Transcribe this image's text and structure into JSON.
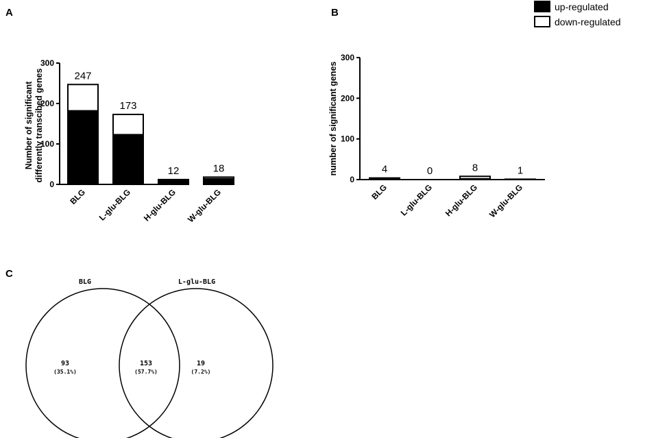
{
  "panels": {
    "a": "A",
    "b": "B",
    "c": "C"
  },
  "legend": {
    "up": "up-regulated",
    "down": "down-regulated"
  },
  "chart_data": [
    {
      "type": "bar",
      "stacked": true,
      "panel": "A",
      "categories": [
        "BLG",
        "L-glu-BLG",
        "H-glu-BLG",
        "W-glu-BLG"
      ],
      "series": [
        {
          "name": "up-regulated",
          "values": [
            182,
            123,
            12,
            14
          ],
          "color": "#000000"
        },
        {
          "name": "down-regulated",
          "values": [
            65,
            50,
            0,
            4
          ],
          "color": "#ffffff"
        }
      ],
      "totals": [
        "247",
        "173",
        "12",
        "18"
      ],
      "ylabel": [
        "Number of significant",
        "differently transcibed genes"
      ],
      "ylim": [
        0,
        300
      ],
      "yticks": [
        "0",
        "100",
        "200",
        "300"
      ]
    },
    {
      "type": "bar",
      "stacked": true,
      "panel": "B",
      "categories": [
        "BLG",
        "L-glu-BLG",
        "H-glu-BLG",
        "W-glu-BLG"
      ],
      "series": [
        {
          "name": "up-regulated",
          "values": [
            3,
            0,
            2,
            1
          ],
          "color": "#000000"
        },
        {
          "name": "down-regulated",
          "values": [
            1,
            0,
            6,
            0
          ],
          "color": "#ffffff"
        }
      ],
      "totals": [
        "4",
        "0",
        "8",
        "1"
      ],
      "ylabel": "number of significant genes",
      "ylim": [
        0,
        300
      ],
      "yticks": [
        "0",
        "100",
        "200",
        "300"
      ]
    }
  ],
  "venn": {
    "sets": [
      "BLG",
      "L-glu-BLG"
    ],
    "regions": [
      {
        "count": "93",
        "percent": "(35.1%)"
      },
      {
        "count": "153",
        "percent": "(57.7%)"
      },
      {
        "count": "19",
        "percent": "(7.2%)"
      }
    ]
  }
}
